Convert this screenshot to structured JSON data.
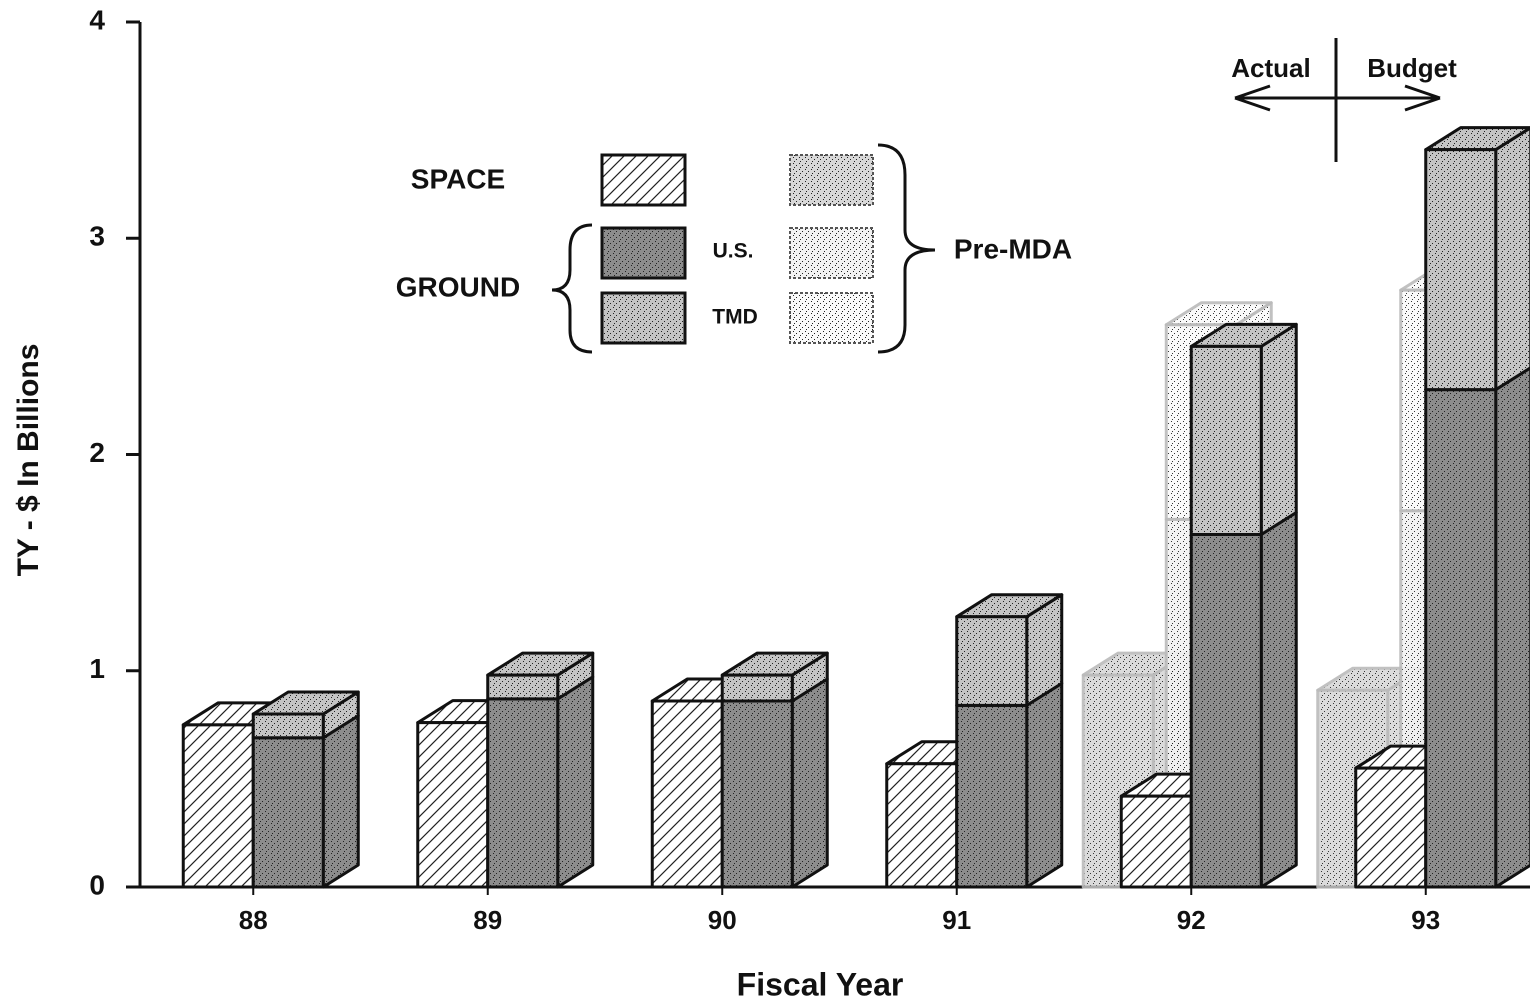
{
  "chart_data": {
    "type": "bar3d",
    "x_label": "Fiscal Year",
    "y_label": "TY - $ In Billions",
    "categories": [
      "88",
      "89",
      "90",
      "91",
      "92",
      "93"
    ],
    "ylim": [
      0,
      4
    ],
    "yticks": [
      0,
      1,
      2,
      3,
      4
    ],
    "series": [
      {
        "name": "SPACE",
        "color": "#ffffff",
        "pattern": "hatch",
        "values": [
          0.75,
          0.76,
          0.86,
          0.57,
          0.42,
          0.55
        ]
      },
      {
        "name": "U.S.",
        "color": "#8c8c8c",
        "pattern": "stipple",
        "values": [
          0.69,
          0.87,
          0.86,
          0.84,
          1.63,
          2.3
        ]
      },
      {
        "name": "TMD",
        "color": "#c4c4c4",
        "pattern": "stipple",
        "values": [
          0.11,
          0.11,
          0.12,
          0.41,
          0.87,
          1.11
        ]
      }
    ],
    "legend": {
      "ground": "GROUND"
    },
    "pre_mda": {
      "label": "Pre-MDA",
      "series": [
        {
          "color": "#d8d8d8",
          "pattern": "stipple",
          "values": [
            null,
            null,
            null,
            null,
            0.98,
            0.91
          ]
        },
        {
          "color": "#f2f2f2",
          "pattern": "stipple",
          "values": [
            null,
            null,
            null,
            null,
            1.7,
            1.74
          ]
        },
        {
          "color": "#fafafa",
          "pattern": "stipple",
          "values": [
            null,
            null,
            null,
            null,
            0.9,
            1.02
          ]
        }
      ]
    },
    "annotations": {
      "actual": "Actual",
      "budget": "Budget"
    }
  }
}
